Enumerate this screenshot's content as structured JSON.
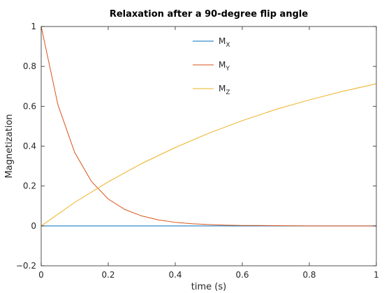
{
  "chart_data": {
    "type": "line",
    "title": "Relaxation after a 90-degree flip angle",
    "xlabel": "time (s)",
    "ylabel": "Magnetization",
    "xlim": [
      0,
      1
    ],
    "ylim": [
      -0.2,
      1
    ],
    "xticks": [
      "0",
      "0.2",
      "0.4",
      "0.6",
      "0.8",
      "1"
    ],
    "yticks": [
      "−0.2",
      "0",
      "0.2",
      "0.4",
      "0.6",
      "0.8",
      "1"
    ],
    "xtick_values": [
      0,
      0.2,
      0.4,
      0.6,
      0.8,
      1
    ],
    "ytick_values": [
      -0.2,
      0,
      0.2,
      0.4,
      0.6,
      0.8,
      1
    ],
    "grid": false,
    "legend_placement": "top-center",
    "series": [
      {
        "name": "M",
        "subscript": "X",
        "color": "#0072bd",
        "x": [
          0,
          0.1,
          0.2,
          0.3,
          0.4,
          0.5,
          0.6,
          0.7,
          0.8,
          0.9,
          1.0
        ],
        "y": [
          0,
          0,
          0,
          0,
          0,
          0,
          0,
          0,
          0,
          0,
          0
        ]
      },
      {
        "name": "M",
        "subscript": "Y",
        "color": "#d95319",
        "x": [
          0,
          0.05,
          0.1,
          0.15,
          0.2,
          0.25,
          0.3,
          0.35,
          0.4,
          0.45,
          0.5,
          0.55,
          0.6,
          0.65,
          0.7,
          0.8,
          0.9,
          1.0
        ],
        "y": [
          1,
          0.607,
          0.368,
          0.223,
          0.135,
          0.082,
          0.05,
          0.03,
          0.018,
          0.011,
          0.007,
          0.004,
          0.002,
          0.002,
          0.001,
          0,
          0,
          0
        ]
      },
      {
        "name": "M",
        "subscript": "Z",
        "color": "#edb120",
        "x": [
          0,
          0.1,
          0.2,
          0.3,
          0.4,
          0.5,
          0.6,
          0.7,
          0.8,
          0.9,
          1.0
        ],
        "y": [
          0,
          0.118,
          0.221,
          0.313,
          0.393,
          0.465,
          0.528,
          0.584,
          0.632,
          0.675,
          0.713
        ]
      }
    ]
  }
}
